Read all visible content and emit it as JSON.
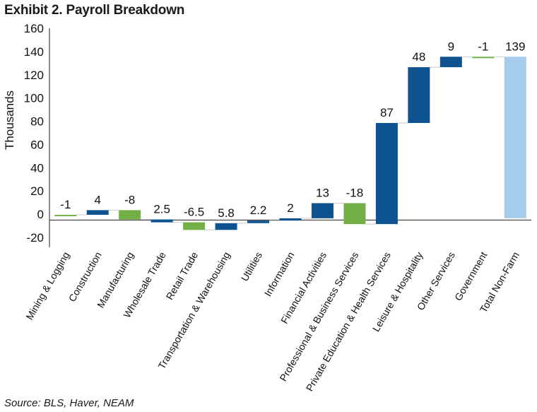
{
  "title": "Exhibit 2. Payroll Breakdown",
  "source": "Source: BLS, Haver, NEAM",
  "colors": {
    "dark_blue": "#0f5290",
    "green": "#72b045",
    "light_blue": "#a6cceb",
    "connector": "#c8c8c8",
    "axis": "#222222"
  },
  "chart_data": {
    "type": "bar",
    "subtype": "waterfall",
    "ylabel": "Thousands",
    "ylim": [
      -20,
      160
    ],
    "yticks": [
      -20,
      0,
      20,
      40,
      60,
      80,
      100,
      120,
      140,
      160
    ],
    "grid": false,
    "categories": [
      "Mining & Logging",
      "Construction",
      "Manufacturing",
      "Wholesale Trade",
      "Retail Trade",
      "Transportation & Warehousing",
      "Utilities",
      "Information",
      "Financial Activities",
      "Professional & Business Services",
      "Private Education & Health Services",
      "Leisure & Hospitality",
      "Other Services",
      "Government",
      "Total Non-Farm"
    ],
    "labels": [
      "-1",
      "4",
      "-8",
      "2.5",
      "-6.5",
      "5.8",
      "2.2",
      "2",
      "13",
      "-18",
      "87",
      "48",
      "9",
      "-1",
      "139"
    ],
    "bars": [
      {
        "low": -1.5,
        "high": -0.5,
        "color": "green"
      },
      {
        "low": -0.5,
        "high": 3.5,
        "color": "dark_blue"
      },
      {
        "low": -4.5,
        "high": 3.5,
        "color": "green"
      },
      {
        "low": -7,
        "high": -4.5,
        "color": "dark_blue"
      },
      {
        "low": -13.5,
        "high": -7,
        "color": "green"
      },
      {
        "low": -13.5,
        "high": -7.7,
        "color": "dark_blue"
      },
      {
        "low": -7.7,
        "high": -5.5,
        "color": "dark_blue"
      },
      {
        "low": -5.5,
        "high": -3.5,
        "color": "dark_blue"
      },
      {
        "low": -3.5,
        "high": 9.5,
        "color": "dark_blue"
      },
      {
        "low": -8.5,
        "high": 9.5,
        "color": "green"
      },
      {
        "low": -8.5,
        "high": 78.5,
        "color": "dark_blue"
      },
      {
        "low": 78.5,
        "high": 126.5,
        "color": "dark_blue"
      },
      {
        "low": 126.5,
        "high": 135.5,
        "color": "dark_blue"
      },
      {
        "low": 134.5,
        "high": 135.5,
        "color": "green"
      },
      {
        "low": -3.5,
        "high": 135.5,
        "color": "light_blue"
      }
    ]
  }
}
